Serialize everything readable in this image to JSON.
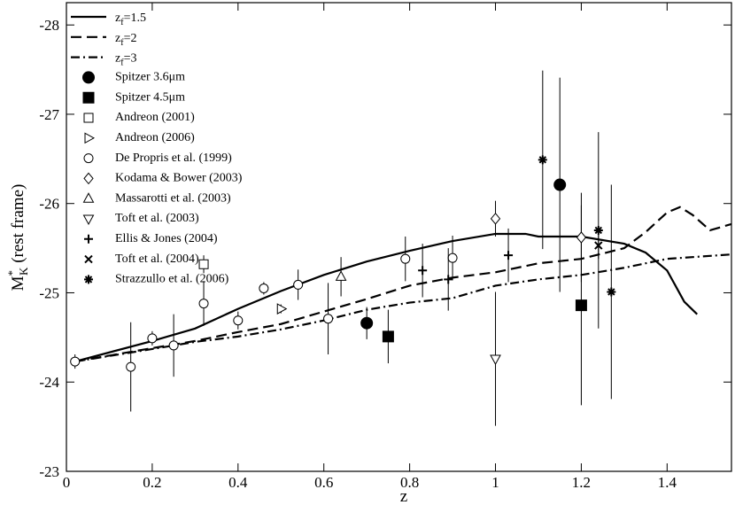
{
  "chart_data": {
    "type": "line",
    "x_label": "z",
    "y_label": {
      "base": "M",
      "sup": "*",
      "sub": "K",
      "rest": " (rest frame)"
    },
    "xlim": [
      0,
      1.55
    ],
    "ylim": [
      -23,
      -28.25
    ],
    "xticks": [
      0,
      0.2,
      0.4,
      0.6,
      0.8,
      1,
      1.2,
      1.4
    ],
    "yticks": [
      -23,
      -24,
      -25,
      -26,
      -27,
      -28
    ],
    "series": [
      {
        "name": [
          "z",
          "f",
          "=1.5"
        ],
        "style": "solid",
        "color": "#000000",
        "x": [
          0.02,
          0.2,
          0.3,
          0.4,
          0.5,
          0.6,
          0.7,
          0.8,
          0.9,
          1.0,
          1.07,
          1.1,
          1.2,
          1.3,
          1.35,
          1.4,
          1.44,
          1.47
        ],
        "y": [
          -24.23,
          -24.46,
          -24.6,
          -24.82,
          -25.02,
          -25.2,
          -25.35,
          -25.47,
          -25.58,
          -25.66,
          -25.66,
          -25.63,
          -25.63,
          -25.55,
          -25.45,
          -25.25,
          -24.9,
          -24.76
        ]
      },
      {
        "name": [
          "z",
          "f",
          "=2"
        ],
        "style": "dashed",
        "color": "#000000",
        "x": [
          0.02,
          0.2,
          0.3,
          0.4,
          0.5,
          0.6,
          0.7,
          0.8,
          0.9,
          1.0,
          1.1,
          1.2,
          1.3,
          1.35,
          1.4,
          1.43,
          1.46,
          1.5,
          1.55
        ],
        "y": [
          -24.23,
          -24.38,
          -24.46,
          -24.56,
          -24.65,
          -24.79,
          -24.93,
          -25.08,
          -25.17,
          -25.23,
          -25.33,
          -25.38,
          -25.5,
          -25.68,
          -25.9,
          -25.96,
          -25.87,
          -25.7,
          -25.77
        ]
      },
      {
        "name": [
          "z",
          "f",
          "=3"
        ],
        "style": "dashdot",
        "color": "#000000",
        "x": [
          0.02,
          0.2,
          0.3,
          0.4,
          0.5,
          0.6,
          0.7,
          0.8,
          0.9,
          1.0,
          1.1,
          1.2,
          1.3,
          1.4,
          1.55
        ],
        "y": [
          -24.23,
          -24.37,
          -24.45,
          -24.51,
          -24.59,
          -24.69,
          -24.81,
          -24.89,
          -24.94,
          -25.08,
          -25.15,
          -25.2,
          -25.28,
          -25.38,
          -25.43
        ]
      },
      {
        "name": "Spitzer 3.6μm",
        "marker": "circle-filled",
        "color": "#000000",
        "x": [
          0.7,
          1.15
        ],
        "y": [
          -24.66,
          -26.21
        ],
        "yerr": [
          0.18,
          1.2
        ]
      },
      {
        "name": "Spitzer 4.5μm",
        "marker": "square-filled",
        "color": "#000000",
        "x": [
          0.75,
          1.2
        ],
        "y": [
          -24.51,
          -24.86
        ],
        "yerr": [
          0.3,
          1.12
        ]
      },
      {
        "name": "Andreon (2001)",
        "marker": "square",
        "color": "#000000",
        "x": [
          0.32
        ],
        "y": [
          -25.32
        ],
        "yerr": [
          0.1
        ]
      },
      {
        "name": "Andreon (2006)",
        "marker": "triangle-right",
        "color": "#000000",
        "x": [
          0.5
        ],
        "y": [
          -24.82
        ],
        "yerr": [
          0.05
        ]
      },
      {
        "name": "De Propris et al. (1999)",
        "marker": "circle",
        "color": "#000000",
        "x": [
          0.02,
          0.15,
          0.2,
          0.25,
          0.32,
          0.4,
          0.46,
          0.54,
          0.61,
          0.79,
          0.9
        ],
        "y": [
          -24.23,
          -24.17,
          -24.49,
          -24.41,
          -24.88,
          -24.69,
          -25.05,
          -25.09,
          -24.71,
          -25.38,
          -25.39
        ],
        "yerr": [
          0.08,
          0.5,
          0.08,
          0.35,
          0.25,
          0.1,
          0.07,
          0.17,
          0.4,
          0.25,
          0.25
        ]
      },
      {
        "name": "Kodama & Bower (2003)",
        "marker": "diamond",
        "color": "#000000",
        "x": [
          1.0,
          1.2
        ],
        "y": [
          -25.83,
          -25.62
        ],
        "yerr": [
          0.2,
          0.5
        ]
      },
      {
        "name": "Massarotti et al. (2003)",
        "marker": "triangle-up",
        "color": "#000000",
        "x": [
          0.64
        ],
        "y": [
          -25.18
        ],
        "yerr": [
          0.22
        ]
      },
      {
        "name": "Toft et al. (2003)",
        "marker": "triangle-down",
        "color": "#000000",
        "x": [
          1.0
        ],
        "y": [
          -24.26
        ],
        "yerr": [
          0.75
        ]
      },
      {
        "name": "Ellis & Jones (2004)",
        "marker": "plus",
        "color": "#000000",
        "x": [
          0.83,
          0.89,
          1.03
        ],
        "y": [
          -25.25,
          -25.15,
          -25.42
        ],
        "yerr": [
          0.3,
          0.35,
          0.3
        ]
      },
      {
        "name": "Toft et al. (2004)",
        "marker": "cross",
        "color": "#000000",
        "x": [
          1.24
        ],
        "y": [
          -25.53
        ],
        "yerr": [
          0.15
        ]
      },
      {
        "name": "Strazzullo et al. (2006)",
        "marker": "star",
        "color": "#000000",
        "x": [
          1.11,
          1.24,
          1.27
        ],
        "y": [
          -26.49,
          -25.7,
          -25.01
        ],
        "yerr": [
          1.0,
          1.1,
          1.2
        ]
      }
    ]
  }
}
